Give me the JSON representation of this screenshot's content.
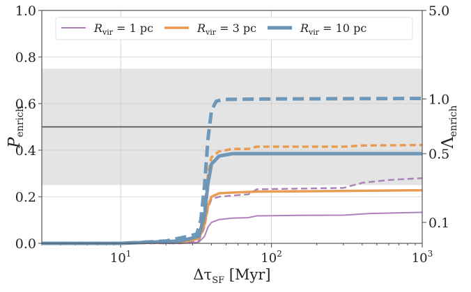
{
  "chart_data": {
    "type": "line",
    "xlabel": "Δτ_SF [Myr]",
    "ylabel": "P_enrich",
    "ylabel_right": "Λ_enrich",
    "xscale": "log",
    "xlim": [
      3,
      1000
    ],
    "ylim": [
      0,
      1
    ],
    "grid": true,
    "legend_placement": "top",
    "x_ticks": [
      "10^1",
      "10^2",
      "10^3"
    ],
    "y_ticks": [
      "0.0",
      "0.2",
      "0.4",
      "0.6",
      "0.8",
      "1.0"
    ],
    "right_ticks": [
      {
        "label": "5.0",
        "p": 1.0
      },
      {
        "label": "1.0",
        "p": 0.62
      },
      {
        "label": "0.5",
        "p": 0.385
      },
      {
        "label": "0.1",
        "p": 0.09
      }
    ],
    "shaded_band": [
      0.25,
      0.75
    ],
    "hline": 0.5,
    "series": [
      {
        "name": "R_vir = 1 pc",
        "color": "#a87bb5",
        "style": "solid",
        "width": 2,
        "legend": true,
        "x": [
          3,
          10,
          25,
          33,
          36,
          38,
          40,
          45,
          55,
          70,
          80,
          150,
          300,
          450,
          1000
        ],
        "y": [
          0,
          0,
          0,
          0.005,
          0.03,
          0.07,
          0.09,
          0.102,
          0.108,
          0.11,
          0.118,
          0.12,
          0.121,
          0.128,
          0.133
        ]
      },
      {
        "name": "",
        "color": "#a87bb5",
        "style": "dashed",
        "width": 2.5,
        "legend": false,
        "x": [
          3,
          10,
          25,
          33,
          36,
          38,
          40,
          45,
          55,
          70,
          80,
          150,
          300,
          400,
          600,
          1000
        ],
        "y": [
          0,
          0,
          0,
          0.01,
          0.07,
          0.15,
          0.19,
          0.2,
          0.205,
          0.21,
          0.232,
          0.235,
          0.238,
          0.26,
          0.272,
          0.28
        ]
      },
      {
        "name": "R_vir = 3 pc",
        "color": "#e8974a",
        "style": "solid",
        "width": 3.5,
        "legend": true,
        "x": [
          3,
          10,
          25,
          33,
          36,
          38,
          40,
          45,
          55,
          80,
          200,
          1000
        ],
        "y": [
          0,
          0,
          0.005,
          0.02,
          0.08,
          0.16,
          0.2,
          0.215,
          0.218,
          0.222,
          0.224,
          0.228
        ]
      },
      {
        "name": "",
        "color": "#e8974a",
        "style": "dashed",
        "width": 3.5,
        "legend": false,
        "x": [
          3,
          10,
          25,
          33,
          36,
          38,
          40,
          45,
          55,
          70,
          80,
          300,
          400,
          1000
        ],
        "y": [
          0,
          0,
          0.005,
          0.03,
          0.15,
          0.3,
          0.37,
          0.395,
          0.405,
          0.405,
          0.415,
          0.415,
          0.42,
          0.422
        ]
      },
      {
        "name": "R_vir = 10 pc",
        "color": "#6892b5",
        "style": "solid",
        "width": 5,
        "legend": true,
        "x": [
          3,
          10,
          25,
          33,
          36,
          38,
          40,
          45,
          55,
          100,
          1000
        ],
        "y": [
          0,
          0,
          0.01,
          0.03,
          0.12,
          0.26,
          0.34,
          0.375,
          0.385,
          0.385,
          0.385
        ]
      },
      {
        "name": "",
        "color": "#6892b5",
        "style": "dashed",
        "width": 5,
        "legend": false,
        "x": [
          3,
          10,
          20,
          28,
          32,
          34,
          36,
          38,
          40,
          43,
          48,
          100,
          1000
        ],
        "y": [
          0,
          0,
          0.01,
          0.03,
          0.04,
          0.1,
          0.25,
          0.45,
          0.57,
          0.61,
          0.618,
          0.62,
          0.622
        ]
      }
    ]
  }
}
